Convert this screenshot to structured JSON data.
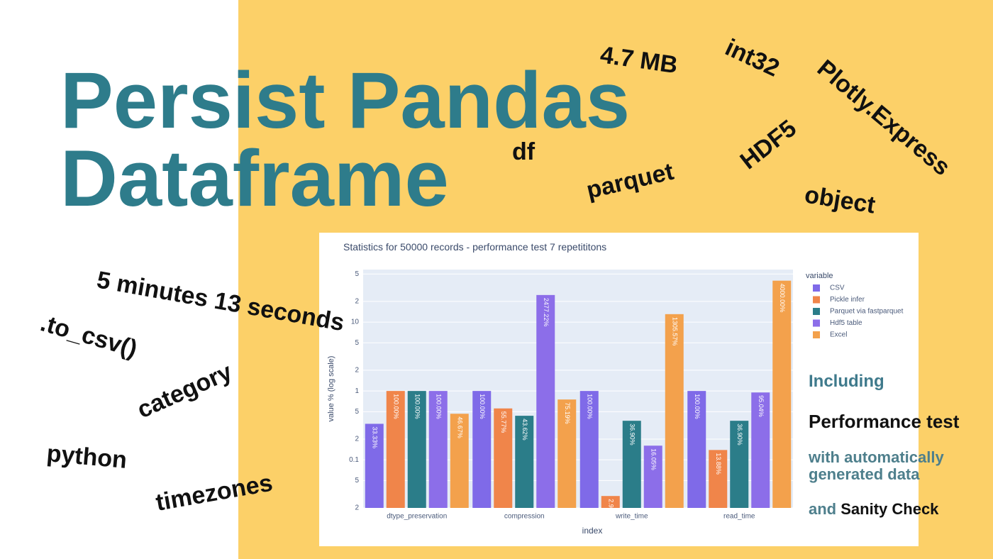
{
  "header": {
    "title_lines": [
      "Persist Pandas",
      "Dataframe"
    ]
  },
  "words": [
    "4.7 MB",
    "int32",
    "Plotly.Express",
    "df",
    "HDF5",
    "parquet",
    "object",
    "5 minutes 13 seconds",
    ".to_csv()",
    "category",
    "python",
    "timezones"
  ],
  "side": {
    "lines": [
      "Including",
      "Performance test",
      "with automatically",
      "generated data"
    ],
    "last": [
      "and",
      "Sanity Check"
    ]
  },
  "chart_data": {
    "type": "bar",
    "title": "Statistics for 50000 records - performance test 7 repetititons",
    "xlabel": "index",
    "ylabel": "value % (log scale)",
    "legend_title": "variable",
    "log_scale": true,
    "grid": true,
    "categories": [
      "dtype_preservation",
      "compression",
      "write_time",
      "read_time"
    ],
    "ylim": [
      0.02,
      58
    ],
    "yticks": [
      {
        "value": 0.02,
        "label": "2"
      },
      {
        "value": 0.05,
        "label": "5"
      },
      0.1,
      {
        "value": 0.2,
        "label": "2"
      },
      {
        "value": 0.5,
        "label": "5"
      },
      1,
      {
        "value": 2,
        "label": "2"
      },
      {
        "value": 5,
        "label": "5"
      },
      10,
      {
        "value": 20,
        "label": "2"
      },
      {
        "value": 50,
        "label": "5"
      }
    ],
    "series": [
      {
        "name": "CSV",
        "color": "#7f6ae8",
        "values": [
          0.3333,
          1,
          1,
          1
        ],
        "value_labels": [
          "33.33%",
          "100.00%",
          "100.00%",
          "100.00%"
        ]
      },
      {
        "name": "Pickle infer",
        "color": "#f0854a",
        "values": [
          1,
          0.5577,
          0.0298,
          0.1388
        ],
        "value_labels": [
          "100.00%",
          "55.77%",
          "2.98%",
          "13.88%"
        ]
      },
      {
        "name": "Parquet via fastparquet",
        "color": "#2b7d89",
        "values": [
          1,
          0.4362,
          0.369,
          0.369
        ],
        "value_labels": [
          "100.00%",
          "43.62%",
          "36.90%",
          "36.90%"
        ]
      },
      {
        "name": "Hdf5 table",
        "color": "#8c6ee9",
        "values": [
          1,
          24.7722,
          0.1605,
          0.9504
        ],
        "value_labels": [
          "100.00%",
          "2477.22%",
          "16.05%",
          "95.04%"
        ]
      },
      {
        "name": "Excel",
        "color": "#f3a14c",
        "values": [
          0.4667,
          0.7519,
          13.0557,
          40
        ],
        "value_labels": [
          "46.67%",
          "75.19%",
          "1305.57%",
          "4000.00%"
        ]
      }
    ]
  }
}
